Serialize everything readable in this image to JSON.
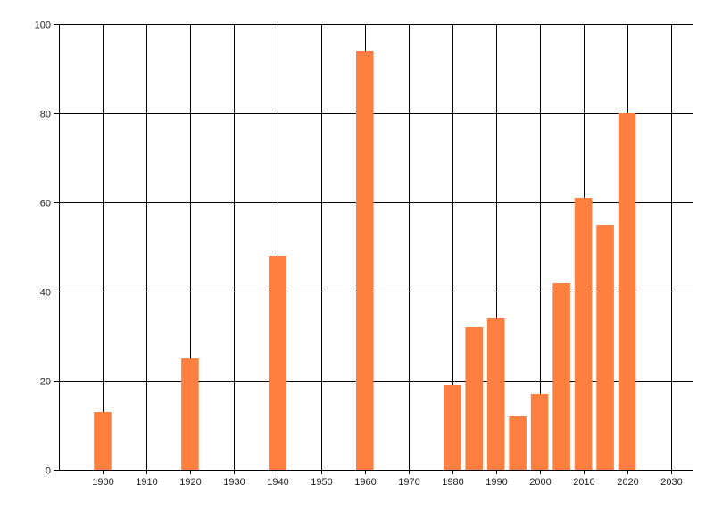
{
  "chart_data": {
    "type": "bar",
    "title": "",
    "xlabel": "",
    "ylabel": "",
    "xlim": [
      1890,
      2035
    ],
    "ylim": [
      0,
      100
    ],
    "grid": true,
    "bar_color": "#FF7F41",
    "x_ticks": [
      1900,
      1910,
      1920,
      1930,
      1940,
      1950,
      1960,
      1970,
      1980,
      1990,
      2000,
      2010,
      2020,
      2030
    ],
    "y_ticks": [
      0,
      20,
      40,
      60,
      80,
      100
    ],
    "series": [
      {
        "name": "values",
        "x": [
          1900,
          1920,
          1940,
          1960,
          1980,
          1985,
          1990,
          1995,
          2000,
          2005,
          2010,
          2015,
          2020
        ],
        "values": [
          13,
          25,
          48,
          94,
          19,
          32,
          34,
          12,
          17,
          42,
          61,
          55,
          80
        ]
      }
    ]
  }
}
